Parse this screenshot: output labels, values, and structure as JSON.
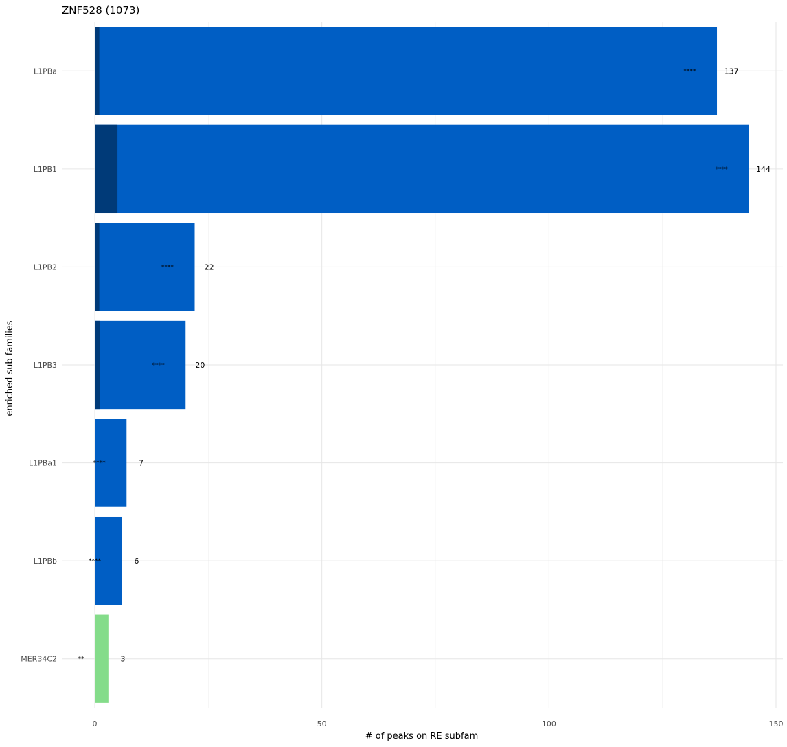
{
  "chart_data": {
    "type": "bar",
    "orientation": "horizontal",
    "stacked": true,
    "title": "ZNF528 (1073)",
    "xlabel": "# of peaks on RE subfam",
    "ylabel": "enriched sub families",
    "xlim": [
      0,
      150
    ],
    "x_ticks": [
      0,
      50,
      100,
      150
    ],
    "grid": true,
    "categories": [
      "L1PBa",
      "L1PB1",
      "L1PB2",
      "L1PB3",
      "L1PBa1",
      "L1PBb",
      "MER34C2"
    ],
    "values": [
      137,
      144,
      22,
      20,
      7,
      6,
      3
    ],
    "value_labels": [
      "137",
      "144",
      "22",
      "20",
      "7",
      "6",
      "3"
    ],
    "significance": [
      "****",
      "****",
      "****",
      "****",
      "****",
      "****",
      "**"
    ],
    "dark_segment": [
      1,
      5,
      1,
      1.2,
      0.1,
      0.1,
      0.1
    ],
    "bar_colors": [
      "#005EC4",
      "#005EC4",
      "#005EC4",
      "#005EC4",
      "#005EC4",
      "#005EC4",
      "#84DC8A"
    ],
    "dark_colors": [
      "#003A78",
      "#003A78",
      "#003A78",
      "#003A78",
      "#003A78",
      "#003A78",
      "#2E7D32"
    ]
  }
}
